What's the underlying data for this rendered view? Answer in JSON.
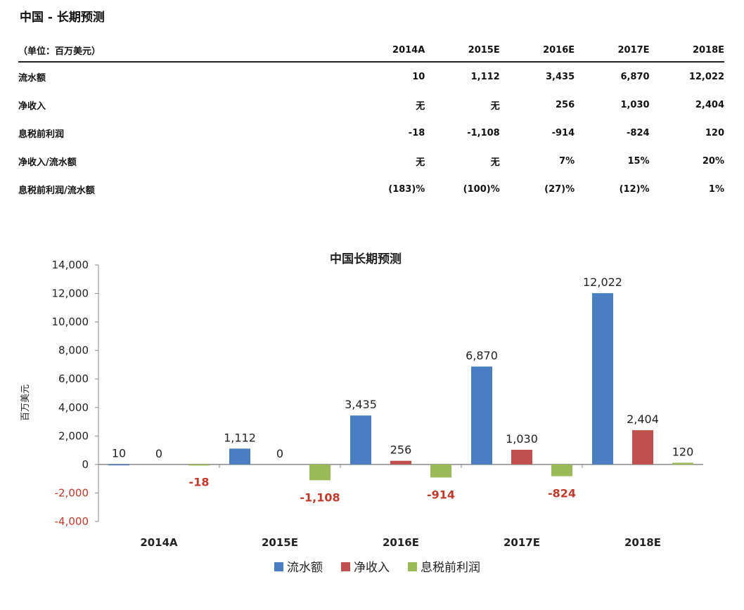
{
  "page": {
    "title": "中国 - 长期预测"
  },
  "table": {
    "unit_label": "（单位：百万美元）",
    "columns": [
      "2014A",
      "2015E",
      "2016E",
      "2017E",
      "2018E"
    ],
    "rows": [
      {
        "label": "流水额",
        "values": [
          "10",
          "1,112",
          "3,435",
          "6,870",
          "12,022"
        ]
      },
      {
        "label": "净收入",
        "values": [
          "无",
          "无",
          "256",
          "1,030",
          "2,404"
        ]
      },
      {
        "label": "息税前利润",
        "values": [
          "-18",
          "-1,108",
          "-914",
          "-824",
          "120"
        ]
      },
      {
        "label": "净收入/流水额",
        "values": [
          "无",
          "无",
          "7%",
          "15%",
          "20%"
        ]
      },
      {
        "label": "息税前利润/流水额",
        "values": [
          "(183)%",
          "(100)%",
          "(27)%",
          "(12)%",
          "1%"
        ]
      }
    ]
  },
  "chart_data": {
    "type": "bar",
    "title": "中国长期预测",
    "ylabel": "百万美元",
    "xlabel": "",
    "categories": [
      "2014A",
      "2015E",
      "2016E",
      "2017E",
      "2018E"
    ],
    "ylim": [
      -4000,
      14000
    ],
    "yticks": [
      14000,
      12000,
      10000,
      8000,
      6000,
      4000,
      2000,
      0,
      -2000,
      -4000
    ],
    "ytick_labels": [
      "14,000",
      "12,000",
      "10,000",
      "8,000",
      "6,000",
      "4,000",
      "2,000",
      "0",
      "-2,000",
      "-4,000"
    ],
    "series": [
      {
        "name": "流水额",
        "color": "#4a7ec2",
        "values": [
          10,
          1112,
          3435,
          6870,
          12022
        ],
        "labels": [
          "10",
          "1,112",
          "3,435",
          "6,870",
          "12,022"
        ]
      },
      {
        "name": "净收入",
        "color": "#c0504d",
        "values": [
          0,
          0,
          256,
          1030,
          2404
        ],
        "labels": [
          "0",
          "0",
          "256",
          "1,030",
          "2,404"
        ]
      },
      {
        "name": "息税前利润",
        "color": "#9bbb59",
        "values": [
          -18,
          -1108,
          -914,
          -824,
          120
        ],
        "labels": [
          "-18",
          "-1,108",
          "-914",
          "-824",
          "120"
        ]
      }
    ],
    "negative_label_color": "#c0392b",
    "grid": false,
    "legend_position": "bottom"
  }
}
